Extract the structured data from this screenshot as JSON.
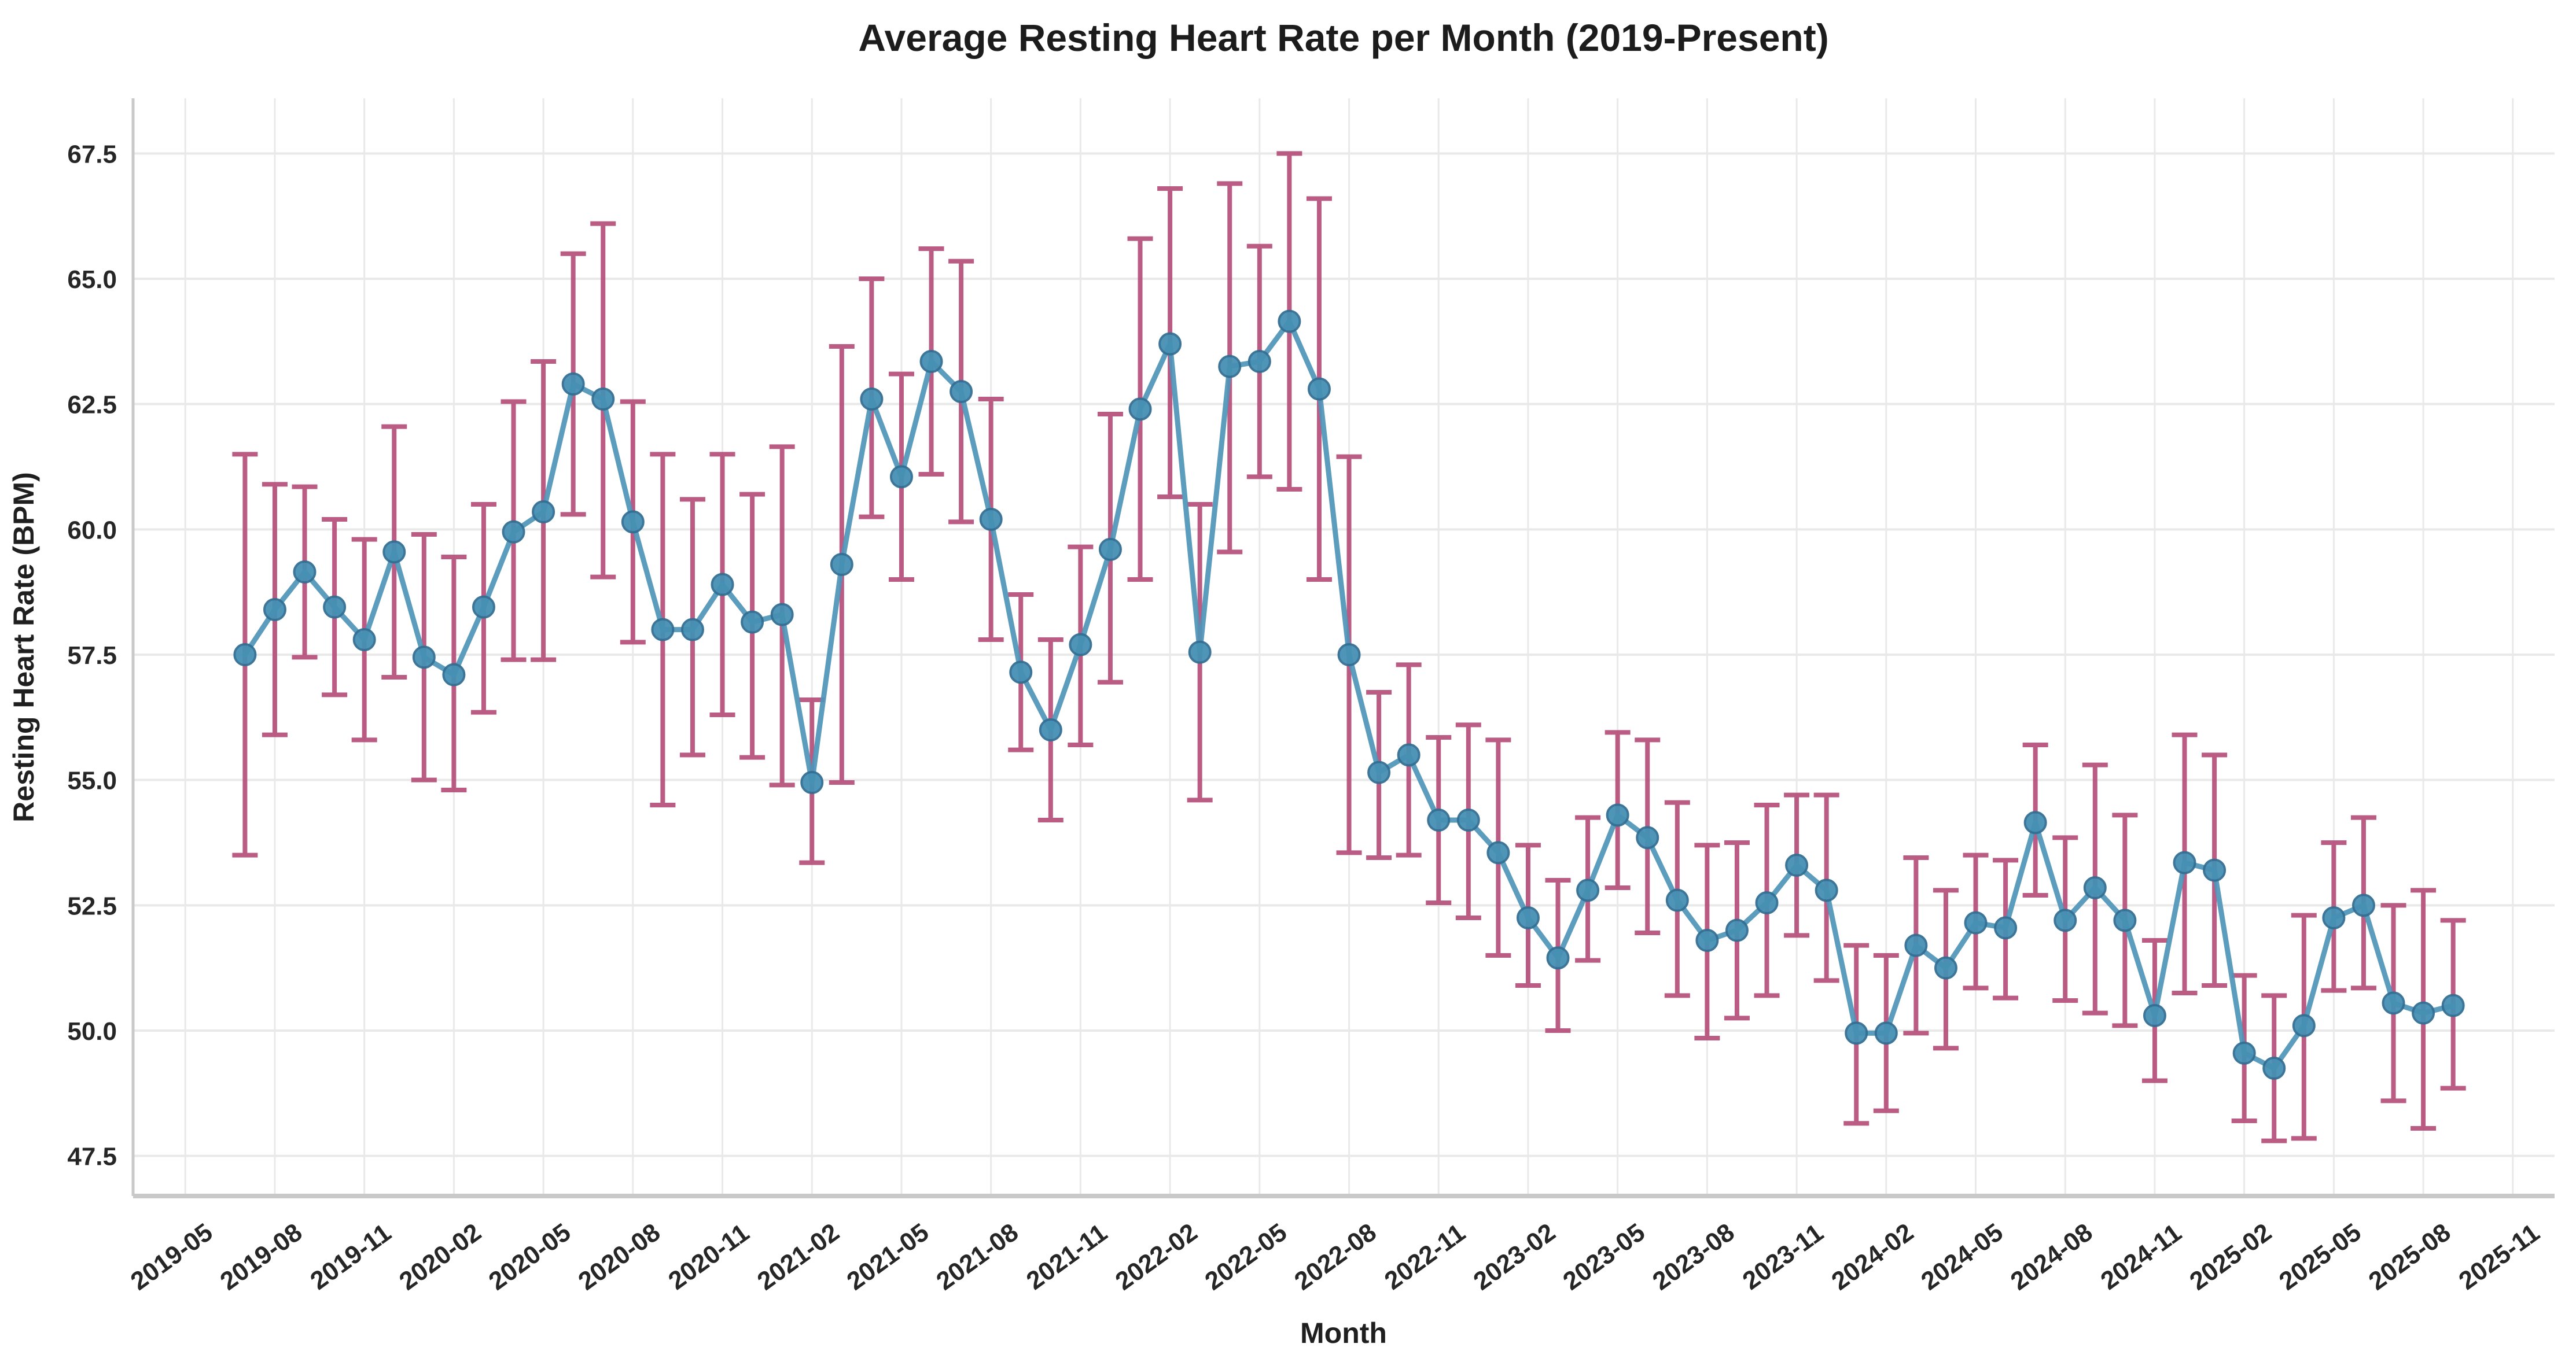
{
  "chart_data": {
    "type": "line",
    "title": "Average Resting Heart Rate per Month (2019-Present)",
    "xlabel": "Month",
    "ylabel": "Resting Heart Rate (BPM)",
    "legend": null,
    "grid": true,
    "x_tick_labels": [
      "2019-05",
      "2019-08",
      "2019-11",
      "2020-02",
      "2020-05",
      "2020-08",
      "2020-11",
      "2021-02",
      "2021-05",
      "2021-08",
      "2021-11",
      "2022-02",
      "2022-05",
      "2022-08",
      "2022-11",
      "2023-02",
      "2023-05",
      "2023-08",
      "2023-11",
      "2024-02",
      "2024-05",
      "2024-08",
      "2024-11",
      "2025-02",
      "2025-05",
      "2025-08",
      "2025-11"
    ],
    "y_tick_labels": [
      "47.5",
      "50.0",
      "52.5",
      "55.0",
      "57.5",
      "60.0",
      "62.5",
      "65.0",
      "67.5"
    ],
    "y_ticks": [
      47.5,
      50.0,
      52.5,
      55.0,
      57.5,
      60.0,
      62.5,
      65.0,
      67.5
    ],
    "ylim": [
      46.7,
      68.6
    ],
    "xlim_months_from_2019_05": [
      -1.75,
      79.4
    ],
    "x": [
      "2019-07",
      "2019-08",
      "2019-09",
      "2019-10",
      "2019-11",
      "2019-12",
      "2020-01",
      "2020-02",
      "2020-03",
      "2020-04",
      "2020-05",
      "2020-06",
      "2020-07",
      "2020-08",
      "2020-09",
      "2020-10",
      "2020-11",
      "2020-12",
      "2021-01",
      "2021-02",
      "2021-03",
      "2021-04",
      "2021-05",
      "2021-06",
      "2021-07",
      "2021-08",
      "2021-09",
      "2021-10",
      "2021-11",
      "2021-12",
      "2022-01",
      "2022-02",
      "2022-03",
      "2022-04",
      "2022-05",
      "2022-06",
      "2022-07",
      "2022-08",
      "2022-09",
      "2022-10",
      "2022-11",
      "2022-12",
      "2023-01",
      "2023-02",
      "2023-03",
      "2023-04",
      "2023-05",
      "2023-06",
      "2023-07",
      "2023-08",
      "2023-09",
      "2023-10",
      "2023-11",
      "2023-12",
      "2024-01",
      "2024-02",
      "2024-03",
      "2024-04",
      "2024-05",
      "2024-06",
      "2024-07",
      "2024-08",
      "2024-09",
      "2024-10",
      "2024-11",
      "2024-12",
      "2025-01",
      "2025-02",
      "2025-03",
      "2025-04",
      "2025-05",
      "2025-06",
      "2025-07",
      "2025-08",
      "2025-09"
    ],
    "series": [
      {
        "name": "Average Resting Heart Rate",
        "values": [
          57.5,
          58.4,
          59.15,
          58.45,
          57.8,
          59.55,
          57.45,
          57.1,
          58.45,
          59.95,
          60.35,
          62.9,
          62.6,
          60.15,
          58.0,
          58.0,
          58.9,
          58.15,
          58.3,
          54.95,
          59.3,
          62.6,
          61.05,
          63.35,
          62.75,
          60.2,
          57.15,
          56.0,
          57.7,
          59.6,
          62.4,
          63.7,
          57.55,
          63.25,
          63.35,
          64.15,
          62.8,
          57.5,
          55.15,
          55.5,
          54.2,
          54.2,
          53.55,
          52.25,
          51.45,
          52.8,
          54.3,
          53.85,
          52.6,
          51.8,
          52.0,
          52.55,
          53.3,
          52.8,
          49.95,
          49.95,
          51.7,
          51.25,
          52.15,
          52.05,
          54.15,
          52.2,
          52.85,
          52.2,
          50.3,
          53.35,
          53.2,
          49.55,
          49.25,
          50.1,
          52.25,
          52.5,
          50.55,
          50.35,
          50.5
        ],
        "err_low": [
          53.5,
          55.9,
          57.45,
          56.7,
          55.8,
          57.05,
          55.0,
          54.8,
          56.35,
          57.4,
          57.4,
          60.3,
          59.05,
          57.75,
          54.5,
          55.5,
          56.3,
          55.45,
          54.9,
          53.35,
          54.95,
          60.25,
          59.0,
          61.1,
          60.15,
          57.8,
          55.6,
          54.2,
          55.7,
          56.95,
          59.0,
          60.65,
          54.6,
          59.55,
          61.05,
          60.8,
          59.0,
          53.55,
          53.45,
          53.5,
          52.55,
          52.25,
          51.5,
          50.9,
          50.0,
          51.4,
          52.85,
          51.95,
          50.7,
          49.85,
          50.25,
          50.7,
          51.9,
          51.0,
          48.15,
          48.4,
          49.95,
          49.65,
          50.85,
          50.65,
          52.7,
          50.6,
          50.35,
          50.1,
          49.0,
          50.75,
          50.9,
          48.2,
          47.8,
          47.85,
          50.8,
          50.85,
          48.6,
          48.05,
          48.85
        ],
        "err_high": [
          61.5,
          60.9,
          60.85,
          60.2,
          59.8,
          62.05,
          59.9,
          59.45,
          60.5,
          62.55,
          63.35,
          65.5,
          66.1,
          62.55,
          61.5,
          60.6,
          61.5,
          60.7,
          61.65,
          56.6,
          63.65,
          65.0,
          63.1,
          65.6,
          65.35,
          62.6,
          58.7,
          57.8,
          59.65,
          62.3,
          65.8,
          66.8,
          60.5,
          66.9,
          65.65,
          67.5,
          66.6,
          61.45,
          56.75,
          57.3,
          55.85,
          56.1,
          55.8,
          53.7,
          53.0,
          54.25,
          55.95,
          55.8,
          54.55,
          53.7,
          53.75,
          54.5,
          54.7,
          54.7,
          51.7,
          51.5,
          53.45,
          52.8,
          53.5,
          53.4,
          55.7,
          53.85,
          55.3,
          54.3,
          51.8,
          55.9,
          55.5,
          51.1,
          50.7,
          52.3,
          53.75,
          54.25,
          52.5,
          52.8,
          52.2
        ]
      }
    ],
    "colors": {
      "line": "#4E95B9",
      "marker_fill": "#4690B4",
      "marker_edge": "#336F93",
      "error_bar": "#B34B76",
      "gridline": "#E9E9E9",
      "spine": "#C9C9C9",
      "text": "#1f1f1f"
    },
    "style": {
      "line_width": 9,
      "marker_radius": 18,
      "error_bar_width": 8,
      "error_cap_halfwidth": 22,
      "x_label_rotation_deg": 36
    }
  }
}
